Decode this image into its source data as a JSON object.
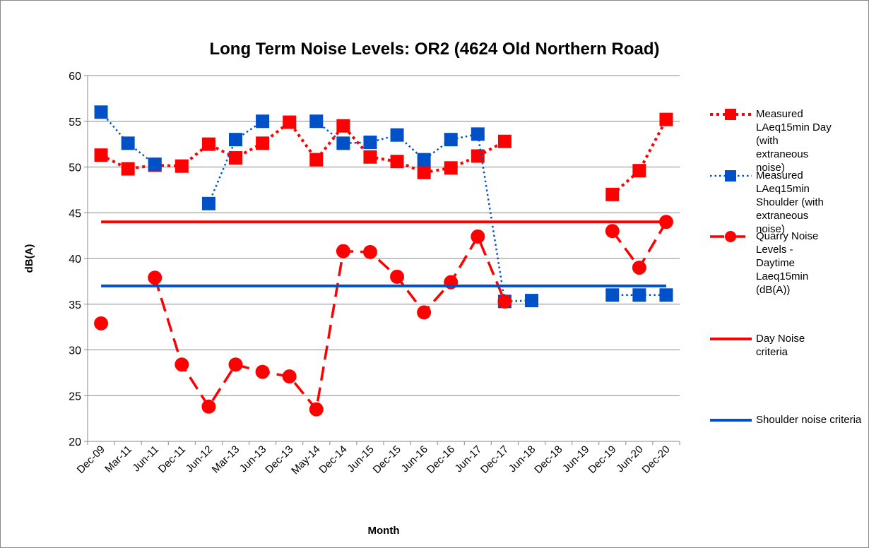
{
  "chart_data": {
    "type": "line",
    "title": "Long Term Noise Levels: OR2 (4624 Old Northern Road)",
    "x_label": "Month",
    "y_label": "dB(A)",
    "categories": [
      "Dec-09",
      "Mar-11",
      "Jun-11",
      "Dec-11",
      "Jun-12",
      "Mar-13",
      "Jun-13",
      "Dec-13",
      "May-14",
      "Dec-14",
      "Jun-15",
      "Dec-15",
      "Jun-16",
      "Dec-16",
      "Jun-17",
      "Dec-17",
      "Jun-18",
      "Dec-18",
      "Jun-19",
      "Dec-19",
      "Jun-20",
      "Dec-20"
    ],
    "ylim": [
      20,
      60
    ],
    "yticks": [
      20,
      25,
      30,
      35,
      40,
      45,
      50,
      55,
      60
    ],
    "grid": true,
    "legend": "right",
    "series": [
      {
        "name": "Measured LAeq15min Day (with extraneous noise)",
        "color": "#ff0000",
        "line_style": "dot",
        "marker": "square",
        "values": [
          51.3,
          49.8,
          50.2,
          50.1,
          52.5,
          51.0,
          52.6,
          54.9,
          50.8,
          54.5,
          51.1,
          50.6,
          49.4,
          49.9,
          51.2,
          52.8,
          null,
          null,
          null,
          47.0,
          49.6,
          55.2
        ]
      },
      {
        "name": "Measured LAeq15min Shoulder (with extraneous noise)",
        "color": "#0050c8",
        "line_style": "dot-thin",
        "marker": "square",
        "values": [
          56.0,
          52.6,
          50.3,
          null,
          46.0,
          53.0,
          55.0,
          null,
          55.0,
          52.6,
          52.7,
          53.5,
          50.8,
          53.0,
          53.6,
          35.3,
          35.4,
          null,
          null,
          36.0,
          36.0,
          36.0
        ]
      },
      {
        "name": "Quarry Noise Levels - Daytime Laeq15min (dB(A))",
        "color": "#ff0000",
        "line_style": "dash",
        "marker": "circle",
        "values": [
          32.9,
          null,
          37.9,
          28.4,
          23.8,
          28.4,
          27.6,
          27.1,
          23.5,
          40.8,
          40.7,
          38.0,
          34.1,
          37.4,
          42.4,
          35.3,
          null,
          null,
          null,
          43.0,
          39.0,
          44.0
        ]
      },
      {
        "name": "Day Noise criteria",
        "color": "#ff0000",
        "line_style": "solid",
        "marker": "none",
        "values": [
          44,
          44,
          44,
          44,
          44,
          44,
          44,
          44,
          44,
          44,
          44,
          44,
          44,
          44,
          44,
          44,
          44,
          44,
          44,
          44,
          44,
          44
        ]
      },
      {
        "name": "Shoulder noise criteria",
        "color": "#0050c8",
        "line_style": "solid",
        "marker": "none",
        "values": [
          37,
          37,
          37,
          37,
          37,
          37,
          37,
          37,
          37,
          37,
          37,
          37,
          37,
          37,
          37,
          37,
          37,
          37,
          37,
          37,
          37,
          37
        ]
      }
    ]
  }
}
